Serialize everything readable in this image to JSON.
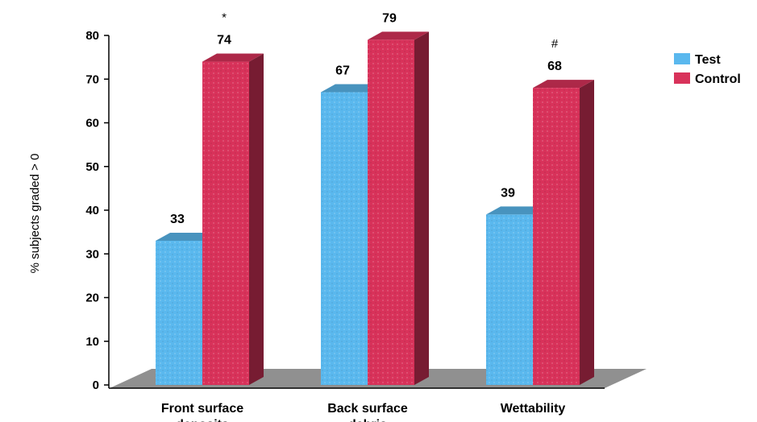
{
  "chart_data": {
    "type": "bar",
    "title": "",
    "xlabel": "",
    "ylabel": "% subjects graded > 0",
    "ylim": [
      0,
      80
    ],
    "yticks": [
      0,
      10,
      20,
      30,
      40,
      50,
      60,
      70,
      80
    ],
    "categories": [
      "Front surface deposits",
      "Back surface debris",
      "Wettability"
    ],
    "category_label_lines": [
      [
        "Front surface",
        "deposits"
      ],
      [
        "Back surface",
        "debris"
      ],
      [
        "Wettability"
      ]
    ],
    "series": [
      {
        "name": "Test",
        "values": [
          33,
          67,
          39
        ],
        "color": "#5ab8ee"
      },
      {
        "name": "Control",
        "values": [
          74,
          79,
          68
        ],
        "color": "#d8325a"
      }
    ],
    "annotations": [
      {
        "category": 0,
        "series": 1,
        "text": "*"
      },
      {
        "category": 2,
        "series": 1,
        "text": "#"
      }
    ],
    "legend_position": "right",
    "style": "3d",
    "grid": false
  }
}
